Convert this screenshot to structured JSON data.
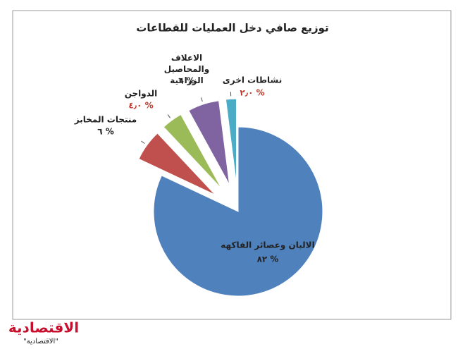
{
  "chart_data": {
    "type": "pie",
    "title": "توزيع صافي دخل العمليات للقطاعات",
    "categories": [
      "الالبان وعصائر الفاكهه",
      "منتجات المخابز",
      "الدواجن",
      "الاعلاف والمحاصيل الزراعية",
      "نشاطات اخرى"
    ],
    "values": [
      82,
      6,
      4,
      6,
      2
    ],
    "value_labels": [
      "٨٢ %",
      "٦ %",
      "٤٫٠ %",
      "٦ %",
      "٢٫٠ %"
    ],
    "colors": [
      "#4f81bd",
      "#c0504d",
      "#9bbb59",
      "#8064a2",
      "#4bacc6"
    ],
    "label_colors": [
      "#222222",
      "#222222",
      "#c0392b",
      "#222222",
      "#c0392b"
    ]
  },
  "logo": "الاقتصادية",
  "credit": "\"الاقتصادية\""
}
